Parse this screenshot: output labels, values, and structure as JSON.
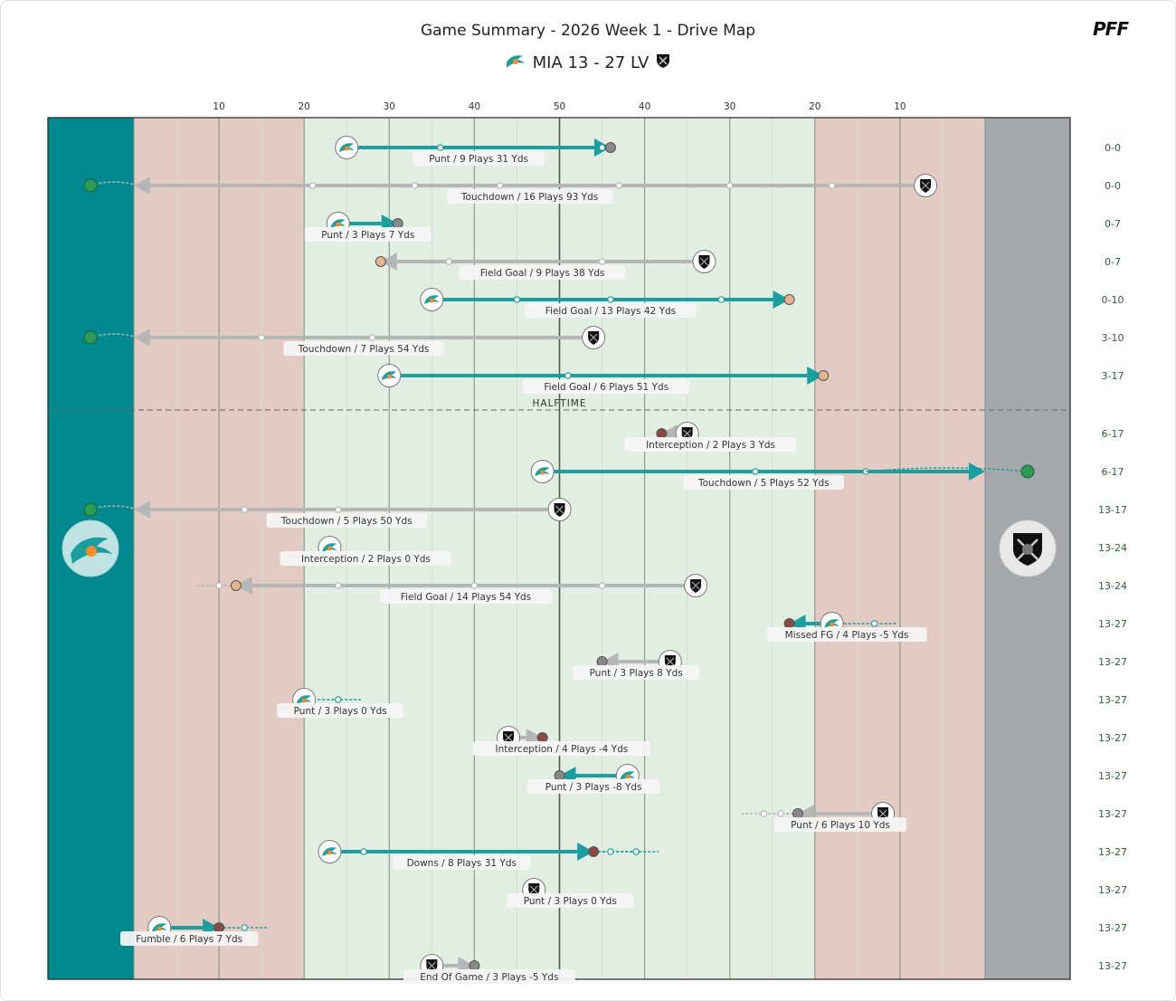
{
  "header": {
    "title": "Game Summary - 2026 Week 1 - Drive Map",
    "score_text": "MIA 13 - 27 LV",
    "brand": "PFF"
  },
  "teams": {
    "home": {
      "abbr": "MIA",
      "color": "#00898f",
      "icon": "dolphin-logo"
    },
    "away": {
      "abbr": "LV",
      "color": "#a5a8aa",
      "icon": "raiders-shield-logo"
    }
  },
  "colors": {
    "endzone_mia": "#00898f",
    "endzone_lv": "#a5a8aa",
    "redzone": "#e3cac3",
    "midfield": "#e3eee2",
    "mia_arrow": "#1b9ea0",
    "lv_arrow": "#b4b6b8",
    "td_dot": "#2e9a55",
    "fg_dot": "#e4b491",
    "punt_dot": "#888888",
    "turnover_dot": "#8a4a44"
  },
  "halftime_label": "HALFTIME",
  "chart_data": {
    "type": "drive-map",
    "x_axis": {
      "range": [
        0,
        100
      ],
      "orientation": "MIA goal line at 0, LV goal line at 100",
      "tick_labels": [
        "10",
        "20",
        "30",
        "40",
        "50",
        "40",
        "30",
        "20",
        "10"
      ]
    },
    "halftime_after_drive": 7,
    "drives": [
      {
        "team": "MIA",
        "start": 25,
        "end": 56,
        "plays_x": [
          36,
          55
        ],
        "result": "Punt",
        "label": "Punt / 9 Plays 31 Yds",
        "score": "0-0"
      },
      {
        "team": "LV",
        "start": 93,
        "end": 0,
        "plays_x": [
          21,
          33,
          43,
          57,
          70,
          82
        ],
        "result": "Touchdown",
        "label": "Touchdown / 16 Plays 93 Yds",
        "score": "0-0"
      },
      {
        "team": "MIA",
        "start": 24,
        "end": 31,
        "plays_x": [],
        "result": "Punt",
        "label": "Punt / 3 Plays 7 Yds",
        "score": "0-7"
      },
      {
        "team": "LV",
        "start": 67,
        "end": 29,
        "plays_x": [
          37,
          55
        ],
        "result": "Field Goal",
        "label": "Field Goal / 9 Plays 38 Yds",
        "score": "0-7"
      },
      {
        "team": "MIA",
        "start": 35,
        "end": 77,
        "plays_x": [
          45,
          56,
          69
        ],
        "result": "Field Goal",
        "label": "Field Goal / 13 Plays 42 Yds",
        "score": "0-10"
      },
      {
        "team": "LV",
        "start": 54,
        "end": 0,
        "plays_x": [
          15,
          28
        ],
        "result": "Touchdown",
        "label": "Touchdown / 7 Plays 54 Yds",
        "score": "3-10"
      },
      {
        "team": "MIA",
        "start": 30,
        "end": 81,
        "plays_x": [
          51
        ],
        "result": "Field Goal",
        "label": "Field Goal / 6 Plays 51 Yds",
        "score": "3-17"
      },
      {
        "team": "LV",
        "start": 65,
        "end": 62,
        "plays_x": [],
        "result": "Interception",
        "label": "Interception / 2 Plays 3 Yds",
        "score": "6-17"
      },
      {
        "team": "MIA",
        "start": 48,
        "end": 100,
        "plays_x": [
          73,
          86
        ],
        "result": "Touchdown",
        "label": "Touchdown / 5 Plays 52 Yds",
        "score": "6-17"
      },
      {
        "team": "LV",
        "start": 50,
        "end": 0,
        "plays_x": [
          13,
          24
        ],
        "result": "Touchdown",
        "label": "Touchdown / 5 Plays 50 Yds",
        "score": "13-17"
      },
      {
        "team": "MIA",
        "start": 23,
        "end": 23,
        "plays_x": [],
        "result": "Interception",
        "label": "Interception / 2 Plays 0 Yds",
        "score": "13-24"
      },
      {
        "team": "LV",
        "start": 66,
        "end": 12,
        "plays_x": [
          10,
          24,
          40,
          55
        ],
        "result": "Field Goal",
        "label": "Field Goal / 14 Plays 54 Yds",
        "score": "13-24"
      },
      {
        "team": "MIA",
        "start": 82,
        "end": 77,
        "plays_x": [
          87
        ],
        "result": "Missed FG",
        "label": "Missed FG / 4 Plays -5 Yds",
        "score": "13-27"
      },
      {
        "team": "LV",
        "start": 63,
        "end": 55,
        "plays_x": [],
        "result": "Punt",
        "label": "Punt / 3 Plays 8 Yds",
        "score": "13-27"
      },
      {
        "team": "MIA",
        "start": 20,
        "end": 20,
        "plays_x": [
          24
        ],
        "result": "Punt",
        "label": "Punt / 3 Plays 0 Yds",
        "score": "13-27"
      },
      {
        "team": "LV",
        "start": 44,
        "end": 48,
        "plays_x": [],
        "result": "Interception",
        "label": "Interception / 4 Plays -4 Yds",
        "score": "13-27"
      },
      {
        "team": "MIA",
        "start": 58,
        "end": 50,
        "plays_x": [],
        "result": "Punt",
        "label": "Punt / 3 Plays -8 Yds",
        "score": "13-27"
      },
      {
        "team": "LV",
        "start": 88,
        "end": 78,
        "plays_x": [
          74,
          76
        ],
        "result": "Punt",
        "label": "Punt / 6 Plays 10 Yds",
        "score": "13-27"
      },
      {
        "team": "MIA",
        "start": 23,
        "end": 54,
        "plays_x": [
          27,
          56,
          59
        ],
        "result": "Downs",
        "label": "Downs / 8 Plays 31 Yds",
        "score": "13-27"
      },
      {
        "team": "LV",
        "start": 47,
        "end": 47,
        "plays_x": [],
        "result": "Punt",
        "label": "Punt / 3 Plays 0 Yds",
        "score": "13-27"
      },
      {
        "team": "MIA",
        "start": 3,
        "end": 10,
        "plays_x": [
          13
        ],
        "result": "Fumble",
        "label": "Fumble / 6 Plays 7 Yds",
        "score": "13-27"
      },
      {
        "team": "LV",
        "start": 35,
        "end": 40,
        "plays_x": [],
        "result": "End Of Game",
        "label": "End Of Game / 3 Plays -5 Yds",
        "score": "13-27"
      }
    ]
  }
}
